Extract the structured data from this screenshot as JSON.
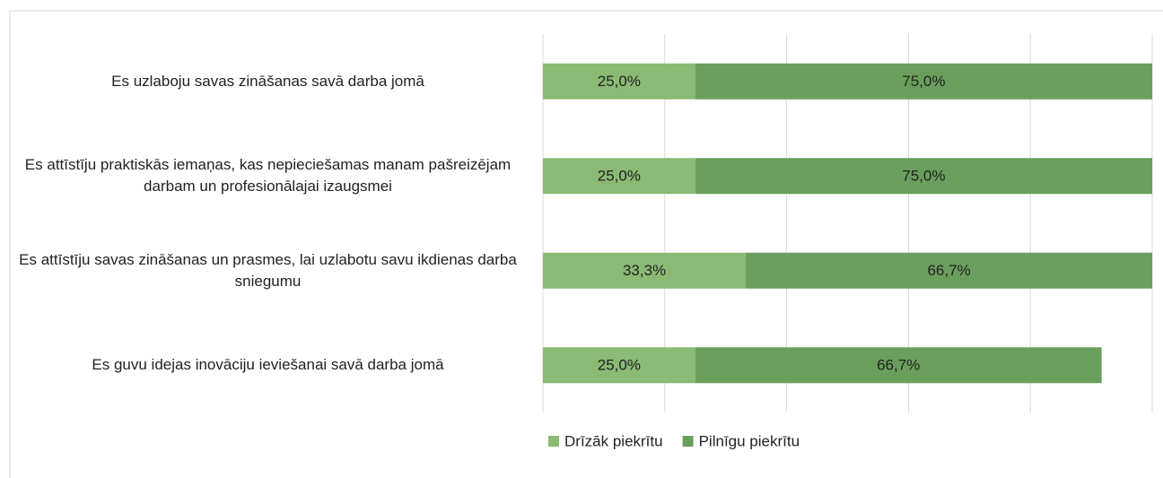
{
  "chart_data": {
    "type": "stacked_barh",
    "categories": [
      "Es uzlaboju savas zināšanas savā darba jomā",
      "Es attīstīju praktiskās iemaņas, kas nepieciešamas manam pašreizējam darbam un profesionālajai izaugsmei",
      "Es attīstīju savas zināšanas un prasmes, lai uzlabotu savu ikdienas darba sniegumu",
      "Es guvu idejas inovāciju ieviešanai savā darba jomā"
    ],
    "series": [
      {
        "name": "Drīzāk piekrītu",
        "color": "#8aba73",
        "values": [
          25,
          25,
          33.3,
          25
        ],
        "value_labels": [
          "25,0%",
          "25,0%",
          "33,3%",
          "25,0%"
        ]
      },
      {
        "name": "Pilnīgu piekrītu",
        "color": "#6a9e5c",
        "values": [
          75,
          75,
          66.7,
          66.7
        ],
        "value_labels": [
          "75,0%",
          "75,0%",
          "66,7%",
          "66,7%"
        ]
      }
    ],
    "xlim": [
      0,
      100
    ],
    "xticks": [
      0,
      20,
      40,
      60,
      80,
      100
    ],
    "grid": true,
    "legend": "bottom"
  }
}
